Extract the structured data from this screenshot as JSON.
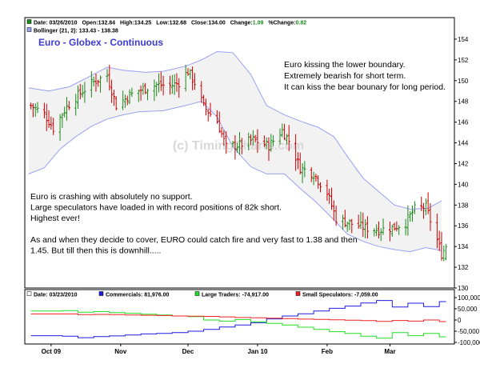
{
  "colors": {
    "up": "#1a8a1a",
    "down": "#cc0000",
    "band_line": "#9aa0f0",
    "band_fill": "#f2f2f2",
    "title": "#3b3bd4",
    "commercials": "#1c1ce0",
    "large_traders": "#22dd22",
    "small_speculators": "#ee2222",
    "watermark": "#d8d8d8"
  },
  "price_header": {
    "date_label": "Date: 03/26/2010",
    "open_label": "Open:132.84",
    "high_label": "High:134.25",
    "low_label": "Low:132.68",
    "close_label": "Close:134.00",
    "change_label": "Change:",
    "change_value": "1.09",
    "pct_change_label": "%Change:",
    "pct_change_value": "0.82",
    "bollinger_label": "Bollinger (21, 2): 133.43 - 138.38"
  },
  "title": "Euro - Globex - Continuous",
  "watermark": "(c) TimingCharts.com",
  "annotations": {
    "right": [
      "Euro kissing the lower boundary.",
      "Extremely bearish for short term.",
      "It can kiss the bear bounary for long period."
    ],
    "left": [
      "Euro is crashing with absolutely no support.",
      "Large speculators have loaded in with record positions of 82k short.",
      "Highest ever!",
      "",
      "As and when they decide to cover, EURO could catch fire and very fast to 1.38 and then",
      "1.45. But till then this is downhill....."
    ]
  },
  "cot_header": {
    "date_label": "Date: 03/23/2010",
    "commercials_label": "Commercials: 81,976.00",
    "large_traders_label": "Large Traders: -74,917.00",
    "small_speculators_label": "Small Speculators: -7,059.00"
  },
  "chart_data": [
    {
      "type": "ohlc",
      "title": "Euro - Globex - Continuous",
      "ylim": [
        130,
        155
      ],
      "y_ticks": [
        "154",
        "152",
        "150",
        "148",
        "146",
        "144",
        "142",
        "140",
        "138",
        "136",
        "134",
        "132",
        "130"
      ],
      "x_ticks": [
        "Oct 09",
        "Nov",
        "Dec",
        "Jan 10",
        "Feb",
        "Mar"
      ],
      "close_path": [
        [
          "2009-09-22",
          147.6
        ],
        [
          "2009-09-28",
          146.8
        ],
        [
          "2009-10-02",
          145.4
        ],
        [
          "2009-10-08",
          147.5
        ],
        [
          "2009-10-14",
          148.8
        ],
        [
          "2009-10-20",
          149.9
        ],
        [
          "2009-10-26",
          150.5
        ],
        [
          "2009-10-30",
          147.6
        ],
        [
          "2009-11-05",
          148.6
        ],
        [
          "2009-11-11",
          149.2
        ],
        [
          "2009-11-17",
          149.6
        ],
        [
          "2009-11-23",
          149.5
        ],
        [
          "2009-11-27",
          149.8
        ],
        [
          "2009-12-01",
          150.9
        ],
        [
          "2009-12-04",
          149.8
        ],
        [
          "2009-12-08",
          147.5
        ],
        [
          "2009-12-14",
          146.1
        ],
        [
          "2009-12-18",
          143.6
        ],
        [
          "2009-12-24",
          143.8
        ],
        [
          "2009-12-30",
          144.3
        ],
        [
          "2010-01-06",
          143.7
        ],
        [
          "2010-01-12",
          145.2
        ],
        [
          "2010-01-15",
          144.2
        ],
        [
          "2010-01-20",
          141.6
        ],
        [
          "2010-01-26",
          141.0
        ],
        [
          "2010-02-01",
          139.2
        ],
        [
          "2010-02-05",
          136.7
        ],
        [
          "2010-02-12",
          136.2
        ],
        [
          "2010-02-18",
          135.8
        ],
        [
          "2010-02-24",
          135.6
        ],
        [
          "2010-03-02",
          135.8
        ],
        [
          "2010-03-08",
          136.3
        ],
        [
          "2010-03-12",
          137.6
        ],
        [
          "2010-03-17",
          137.8
        ],
        [
          "2010-03-22",
          134.6
        ],
        [
          "2010-03-24",
          133.3
        ],
        [
          "2010-03-26",
          134.0
        ]
      ],
      "bollinger": {
        "period": 21,
        "std_dev": 2,
        "upper_path": [
          [
            "2009-09-21",
            149.3
          ],
          [
            "2009-09-30",
            149.0
          ],
          [
            "2009-10-09",
            149.4
          ],
          [
            "2009-10-19",
            150.5
          ],
          [
            "2009-10-26",
            151.3
          ],
          [
            "2009-11-02",
            151.0
          ],
          [
            "2009-11-12",
            150.8
          ],
          [
            "2009-11-20",
            150.9
          ],
          [
            "2009-11-30",
            151.4
          ],
          [
            "2009-12-07",
            152.0
          ],
          [
            "2009-12-14",
            152.8
          ],
          [
            "2009-12-21",
            152.7
          ],
          [
            "2009-12-29",
            150.6
          ],
          [
            "2010-01-05",
            147.6
          ],
          [
            "2010-01-13",
            146.7
          ],
          [
            "2010-01-20",
            146.1
          ],
          [
            "2010-01-28",
            145.5
          ],
          [
            "2010-02-04",
            144.6
          ],
          [
            "2010-02-10",
            142.7
          ],
          [
            "2010-02-17",
            140.6
          ],
          [
            "2010-02-24",
            139.3
          ],
          [
            "2010-03-03",
            138.0
          ],
          [
            "2010-03-10",
            137.6
          ],
          [
            "2010-03-18",
            137.7
          ],
          [
            "2010-03-24",
            138.4
          ]
        ],
        "lower_path": [
          [
            "2009-09-21",
            141.0
          ],
          [
            "2009-09-28",
            141.6
          ],
          [
            "2009-10-05",
            143.4
          ],
          [
            "2009-10-12",
            144.6
          ],
          [
            "2009-10-19",
            145.6
          ],
          [
            "2009-10-26",
            146.3
          ],
          [
            "2009-11-02",
            146.7
          ],
          [
            "2009-11-09",
            147.0
          ],
          [
            "2009-11-20",
            147.1
          ],
          [
            "2009-11-30",
            147.6
          ],
          [
            "2009-12-07",
            148.0
          ],
          [
            "2009-12-14",
            146.5
          ],
          [
            "2009-12-21",
            143.6
          ],
          [
            "2009-12-29",
            141.7
          ],
          [
            "2010-01-05",
            141.0
          ],
          [
            "2010-01-13",
            141.0
          ],
          [
            "2010-01-20",
            139.6
          ],
          [
            "2010-01-27",
            138.3
          ],
          [
            "2010-02-03",
            136.8
          ],
          [
            "2010-02-10",
            135.2
          ],
          [
            "2010-02-17",
            134.5
          ],
          [
            "2010-02-24",
            134.0
          ],
          [
            "2010-03-03",
            133.7
          ],
          [
            "2010-03-10",
            133.5
          ],
          [
            "2010-03-17",
            133.9
          ],
          [
            "2010-03-24",
            133.6
          ]
        ],
        "current": {
          "lower": 133.43,
          "upper": 138.38
        }
      },
      "last_bar": {
        "date": "2010-03-26",
        "open": 132.84,
        "high": 134.25,
        "low": 132.68,
        "close": 134.0,
        "change": 1.09,
        "pct_change": 0.82
      }
    },
    {
      "type": "line",
      "title": "",
      "ylim": [
        -100000,
        100000
      ],
      "y_ticks": [
        "100,000",
        "50,000",
        "0",
        "-50,000",
        "-100,000"
      ],
      "series": [
        {
          "name": "Commercials",
          "color": "#1c1ce0",
          "values": [
            [
              "2009-09-22",
              -70000
            ],
            [
              "2009-10-06",
              -72000
            ],
            [
              "2009-10-13",
              -79000
            ],
            [
              "2009-10-20",
              -74000
            ],
            [
              "2009-10-27",
              -71000
            ],
            [
              "2009-11-03",
              -67000
            ],
            [
              "2009-11-10",
              -62000
            ],
            [
              "2009-11-17",
              -60000
            ],
            [
              "2009-11-24",
              -56000
            ],
            [
              "2009-12-01",
              -50000
            ],
            [
              "2009-12-08",
              -42000
            ],
            [
              "2009-12-15",
              -31000
            ],
            [
              "2009-12-22",
              -22000
            ],
            [
              "2009-12-29",
              -12000
            ],
            [
              "2010-01-05",
              5000
            ],
            [
              "2010-01-12",
              18000
            ],
            [
              "2010-01-19",
              28000
            ],
            [
              "2010-01-26",
              40000
            ],
            [
              "2010-02-02",
              52000
            ],
            [
              "2010-02-09",
              62000
            ],
            [
              "2010-02-16",
              76000
            ],
            [
              "2010-02-23",
              87000
            ],
            [
              "2010-03-02",
              58000
            ],
            [
              "2010-03-09",
              75000
            ],
            [
              "2010-03-16",
              60000
            ],
            [
              "2010-03-23",
              81976
            ]
          ]
        },
        {
          "name": "Large Traders",
          "color": "#22dd22",
          "values": [
            [
              "2009-09-22",
              40000
            ],
            [
              "2009-10-06",
              42000
            ],
            [
              "2009-10-13",
              35000
            ],
            [
              "2009-10-20",
              38000
            ],
            [
              "2009-10-27",
              33000
            ],
            [
              "2009-11-03",
              30000
            ],
            [
              "2009-11-10",
              26000
            ],
            [
              "2009-11-17",
              22000
            ],
            [
              "2009-11-24",
              18000
            ],
            [
              "2009-12-01",
              15000
            ],
            [
              "2009-12-08",
              0
            ],
            [
              "2009-12-15",
              -5000
            ],
            [
              "2009-12-22",
              2000
            ],
            [
              "2009-12-29",
              -8000
            ],
            [
              "2010-01-05",
              -15000
            ],
            [
              "2010-01-12",
              -22000
            ],
            [
              "2010-01-19",
              -32000
            ],
            [
              "2010-01-26",
              -42000
            ],
            [
              "2010-02-02",
              -52000
            ],
            [
              "2010-02-09",
              -60000
            ],
            [
              "2010-02-16",
              -72000
            ],
            [
              "2010-02-23",
              -81000
            ],
            [
              "2010-03-02",
              -56000
            ],
            [
              "2010-03-09",
              -70000
            ],
            [
              "2010-03-16",
              -60000
            ],
            [
              "2010-03-23",
              -74917
            ]
          ]
        },
        {
          "name": "Small Speculators",
          "color": "#ee2222",
          "values": [
            [
              "2009-09-22",
              27000
            ],
            [
              "2009-10-06",
              27000
            ],
            [
              "2009-10-13",
              24000
            ],
            [
              "2009-10-20",
              25000
            ],
            [
              "2009-10-27",
              24000
            ],
            [
              "2009-11-03",
              22000
            ],
            [
              "2009-11-10",
              21000
            ],
            [
              "2009-11-17",
              20000
            ],
            [
              "2009-11-24",
              18000
            ],
            [
              "2009-12-01",
              17000
            ],
            [
              "2009-12-08",
              16000
            ],
            [
              "2009-12-15",
              14000
            ],
            [
              "2009-12-22",
              11000
            ],
            [
              "2009-12-29",
              10000
            ],
            [
              "2010-01-05",
              8000
            ],
            [
              "2010-01-12",
              6000
            ],
            [
              "2010-01-19",
              4000
            ],
            [
              "2010-01-26",
              3000
            ],
            [
              "2010-02-02",
              1000
            ],
            [
              "2010-02-09",
              -1000
            ],
            [
              "2010-02-16",
              -3000
            ],
            [
              "2010-02-23",
              -6000
            ],
            [
              "2010-03-02",
              -2000
            ],
            [
              "2010-03-09",
              -5000
            ],
            [
              "2010-03-16",
              0
            ],
            [
              "2010-03-23",
              -7059
            ]
          ]
        }
      ]
    }
  ]
}
